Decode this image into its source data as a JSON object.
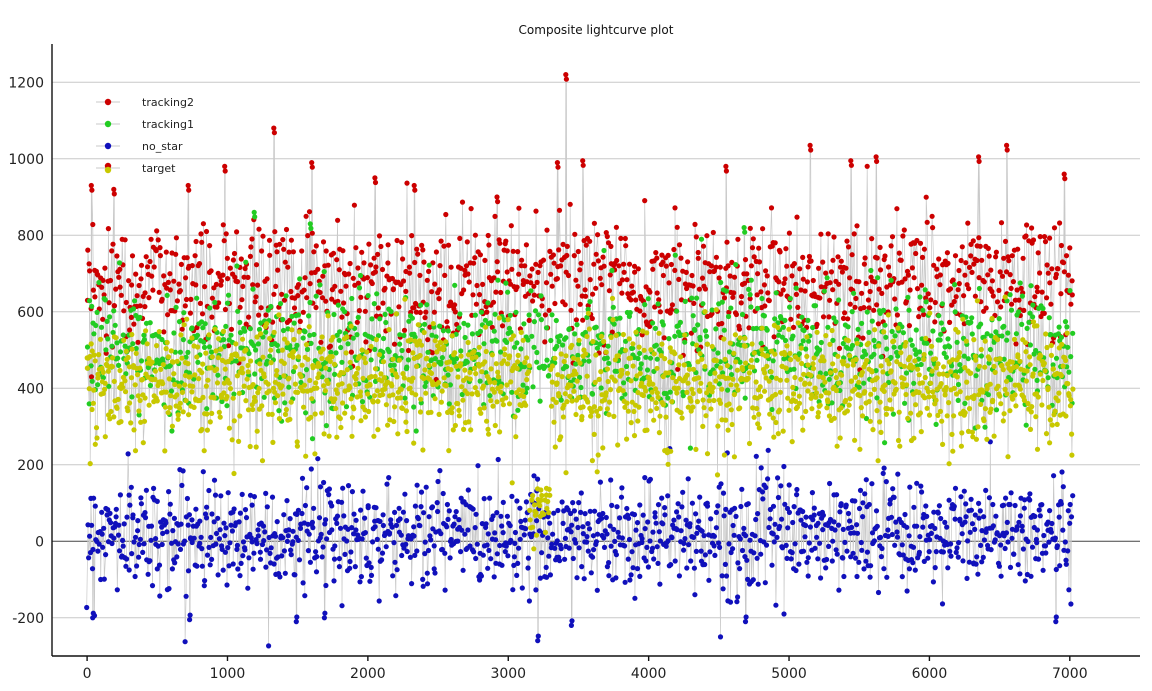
{
  "chart_data": {
    "type": "scatter",
    "title": "Composite lightcurve plot",
    "xlabel": "",
    "ylabel": "",
    "xlim": [
      -250,
      7500
    ],
    "ylim": [
      -300,
      1300
    ],
    "x_ticks": [
      0,
      1000,
      2000,
      3000,
      4000,
      5000,
      6000,
      7000
    ],
    "y_ticks": [
      -200,
      0,
      200,
      400,
      600,
      800,
      1000,
      1200
    ],
    "grid": "horizontal",
    "legend_position": "top-left",
    "connector_color": "#c9c9c9",
    "series": [
      {
        "name": "tracking2",
        "color": "#cc0000",
        "x_range": [
          0,
          7020
        ],
        "count": 1100,
        "baseline": 680,
        "spread": 80,
        "peaks": [
          {
            "x": 30,
            "y": 930
          },
          {
            "x": 190,
            "y": 920
          },
          {
            "x": 720,
            "y": 930
          },
          {
            "x": 980,
            "y": 980
          },
          {
            "x": 1330,
            "y": 1080
          },
          {
            "x": 1600,
            "y": 990
          },
          {
            "x": 2050,
            "y": 950
          },
          {
            "x": 2330,
            "y": 930
          },
          {
            "x": 2920,
            "y": 900
          },
          {
            "x": 3350,
            "y": 990
          },
          {
            "x": 3410,
            "y": 1220
          },
          {
            "x": 3530,
            "y": 995
          },
          {
            "x": 4550,
            "y": 980
          },
          {
            "x": 5150,
            "y": 1035
          },
          {
            "x": 5440,
            "y": 995
          },
          {
            "x": 5620,
            "y": 1005
          },
          {
            "x": 6350,
            "y": 1005
          },
          {
            "x": 6550,
            "y": 1035
          },
          {
            "x": 6960,
            "y": 960
          }
        ]
      },
      {
        "name": "tracking1",
        "color": "#22cc22",
        "x_range": [
          0,
          7020
        ],
        "count": 1100,
        "baseline": 500,
        "spread": 80,
        "peaks": [
          {
            "x": 1190,
            "y": 860
          },
          {
            "x": 1590,
            "y": 830
          },
          {
            "x": 4680,
            "y": 820
          }
        ]
      },
      {
        "name": "no_star",
        "color": "#1010bb",
        "x_range": [
          0,
          7020
        ],
        "count": 1300,
        "baseline": 20,
        "spread": 70,
        "peaks": [
          {
            "x": 40,
            "y": -200
          },
          {
            "x": 730,
            "y": -205
          },
          {
            "x": 1490,
            "y": -210
          },
          {
            "x": 1690,
            "y": -200
          },
          {
            "x": 3210,
            "y": -260
          },
          {
            "x": 3450,
            "y": -220
          },
          {
            "x": 4690,
            "y": -210
          },
          {
            "x": 6900,
            "y": -210
          }
        ]
      },
      {
        "name": "target",
        "color": "#c8c800",
        "edge_color": "#cc0000",
        "x_range": [
          0,
          7020
        ],
        "count": 1500,
        "baseline": 410,
        "spread": 75,
        "dip": {
          "x_from": 3150,
          "x_to": 3300,
          "y": 80
        }
      }
    ]
  }
}
